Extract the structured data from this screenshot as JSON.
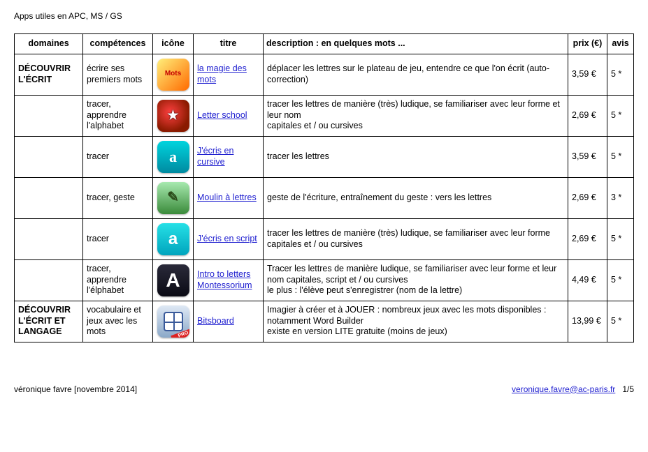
{
  "header": {
    "title": "Apps utiles en APC, MS / GS"
  },
  "table": {
    "columns": {
      "domaines": "domaines",
      "competences": "compétences",
      "icone": "icône",
      "titre": "titre",
      "description": "description : en quelques mots ...",
      "prix": "prix (€)",
      "avis": "avis"
    },
    "rows": [
      {
        "domaine": "DÉCOUVRIR L'ÉCRIT",
        "competence": "écrire ses premiers mots",
        "icone": {
          "class": "icon-mots",
          "label": "Mots"
        },
        "titre": "la magie des mots",
        "description": "déplacer les lettres sur le plateau de jeu, entendre ce que l'on écrit (auto-correction)",
        "prix": "3,59 €",
        "avis": "5 *"
      },
      {
        "domaine": "",
        "competence": "tracer, apprendre l'alphabet",
        "icone": {
          "class": "icon-letter",
          "label": ""
        },
        "titre": "Letter school",
        "description": "tracer les lettres de manière (très) ludique, se familiariser avec leur forme et leur nom\ncapitales et / ou cursives",
        "prix": "2,69 €",
        "avis": "5 *"
      },
      {
        "domaine": "",
        "competence": "tracer",
        "icone": {
          "class": "icon-cursive",
          "label": "a"
        },
        "titre": "J'écris en cursive",
        "description": "tracer les lettres",
        "prix": "3,59 €",
        "avis": "5 *"
      },
      {
        "domaine": "",
        "competence": "tracer, geste",
        "icone": {
          "class": "icon-moulin",
          "label": ""
        },
        "titre": "Moulin à lettres",
        "description": "geste de l'écriture, entraînement du geste : vers les lettres",
        "prix": "2,69 €",
        "avis": "3 *"
      },
      {
        "domaine": "",
        "competence": "tracer",
        "icone": {
          "class": "icon-script",
          "label": "a"
        },
        "titre": "J'écris en script",
        "description": "tracer les lettres de manière (très) ludique, se familiariser avec leur forme\ncapitales et / ou cursives",
        "prix": "2,69 €",
        "avis": "5 *"
      },
      {
        "domaine": "",
        "competence": "tracer, apprendre l'élphabet",
        "icone": {
          "class": "icon-intro",
          "label": "A"
        },
        "titre": "Intro to letters Montessorium",
        "description": "Tracer les lettres de manière ludique, se familiariser avec leur forme et leur nom capitales, script et / ou cursives\nle plus : l'élève peut s'enregistrer (nom de la lettre)",
        "prix": "4,49 €",
        "avis": "5 *"
      },
      {
        "domaine": "DÉCOUVRIR L'ÉCRIT ET LANGAGE",
        "competence": "vocabulaire et jeux avec les mots",
        "icone": {
          "class": "icon-bits",
          "label": "",
          "pro": "PRO"
        },
        "titre": "Bitsboard",
        "description": "Imagier à créer et à JOUER : nombreux jeux avec les mots disponibles : notamment Word Builder\nexiste en version LITE gratuite (moins de jeux)",
        "prix": "13,99 €",
        "avis": "5 *"
      }
    ]
  },
  "footer": {
    "left": "véronique favre [novembre 2014]",
    "email": "veronique.favre@ac-paris.fr",
    "page": "1/5"
  }
}
